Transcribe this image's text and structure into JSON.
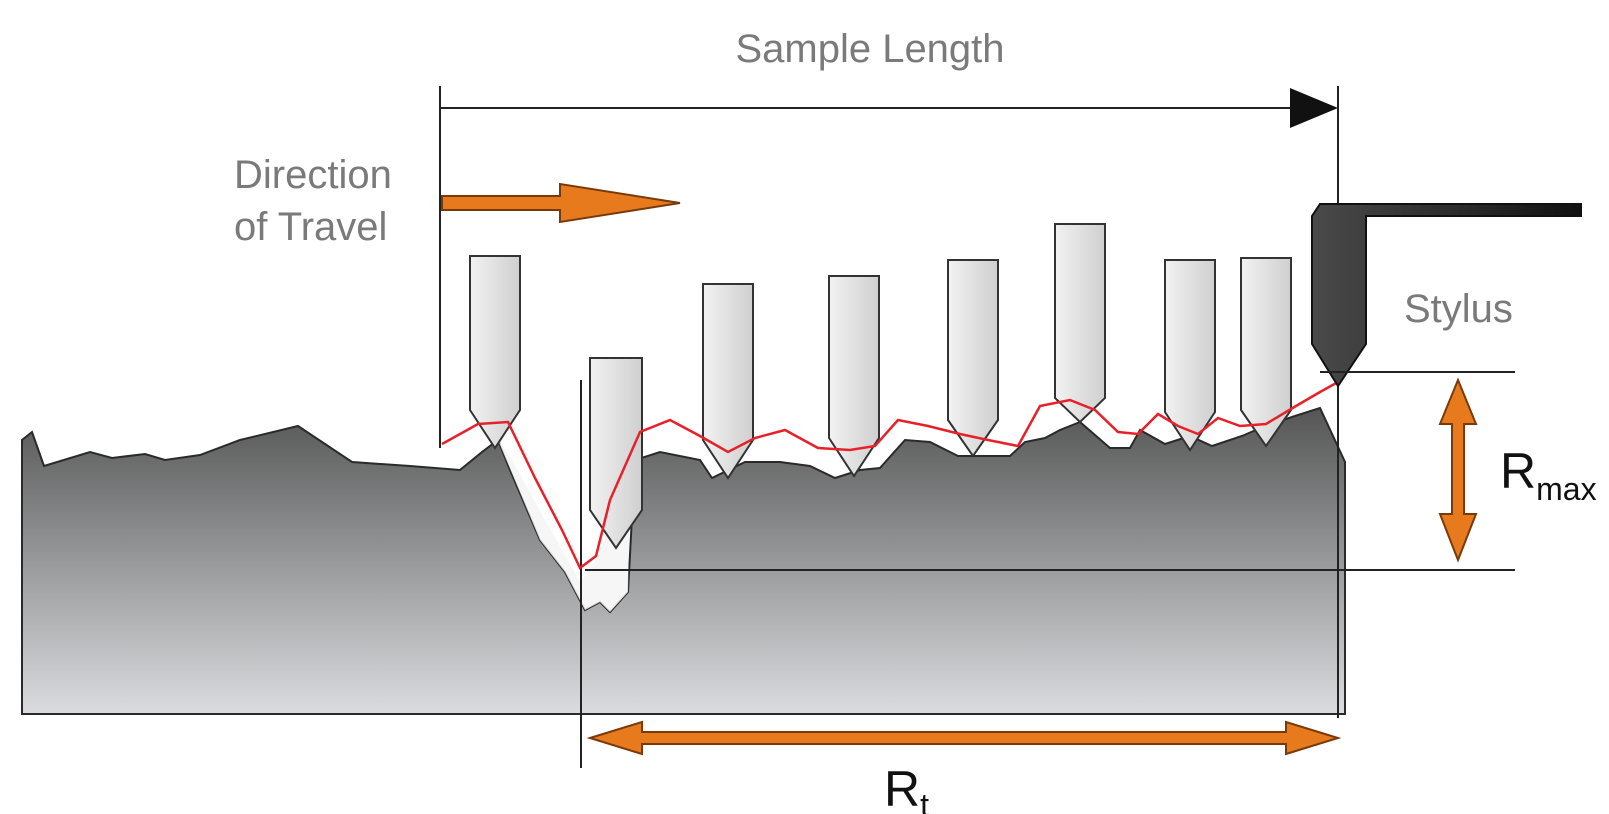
{
  "labels": {
    "sample_length": "Sample Length",
    "direction_line1": "Direction",
    "direction_line2": "of Travel",
    "stylus": "Stylus",
    "rmax_main": "R",
    "rmax_sub": "max",
    "rt_main": "R",
    "rt_sub": "t"
  },
  "colors": {
    "surface_top": "#5a5a5a",
    "surface_bottom": "#d8dadd",
    "trace": "#e8202a",
    "arrow_orange": "#e87a1e",
    "stylus_light": "#dcdcdc",
    "stylus_dark": "#2a2a2a",
    "line": "#222222",
    "label_gray": "#7a7a7a"
  },
  "icons": {
    "travel_arrow": "right-arrow",
    "sample_arrow": "right-arrowhead",
    "rmax_arrow": "double-arrow-vertical",
    "rt_arrow": "double-arrow-horizontal"
  }
}
